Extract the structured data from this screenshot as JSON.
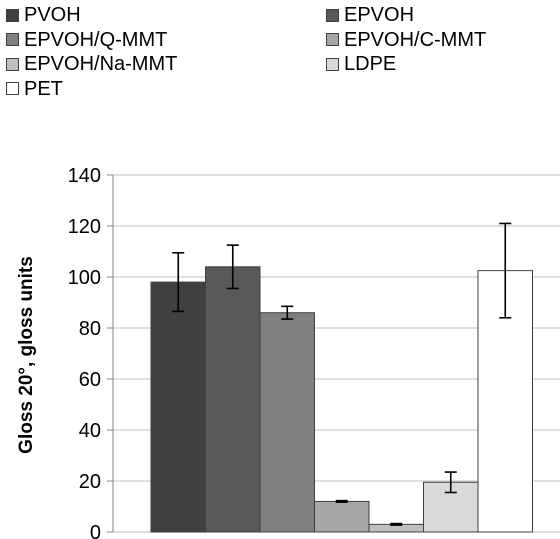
{
  "chart_data": {
    "type": "bar",
    "title": "",
    "xlabel": "",
    "ylabel": "Gloss 20°, gloss units",
    "ylim": [
      0,
      140
    ],
    "yticks": [
      0,
      20,
      40,
      60,
      80,
      100,
      120,
      140
    ],
    "grid": true,
    "legend_position": "top",
    "series": [
      {
        "name": "PVOH",
        "value": 98,
        "error": 11.5,
        "color": "#404040"
      },
      {
        "name": "EPVOH",
        "value": 104,
        "error": 8.5,
        "color": "#595959"
      },
      {
        "name": "EPVOH/Q-MMT",
        "value": 86,
        "error": 2.5,
        "color": "#7f7f7f"
      },
      {
        "name": "EPVOH/C-MMT",
        "value": 12,
        "error": 0.3,
        "color": "#a6a6a6"
      },
      {
        "name": "EPVOH/Na-MMT",
        "value": 3,
        "error": 0.3,
        "color": "#bfbfbf"
      },
      {
        "name": "LDPE",
        "value": 19.5,
        "error": 4,
        "color": "#d9d9d9"
      },
      {
        "name": "PET",
        "value": 102.5,
        "error": 18.5,
        "color": "#ffffff"
      }
    ]
  }
}
